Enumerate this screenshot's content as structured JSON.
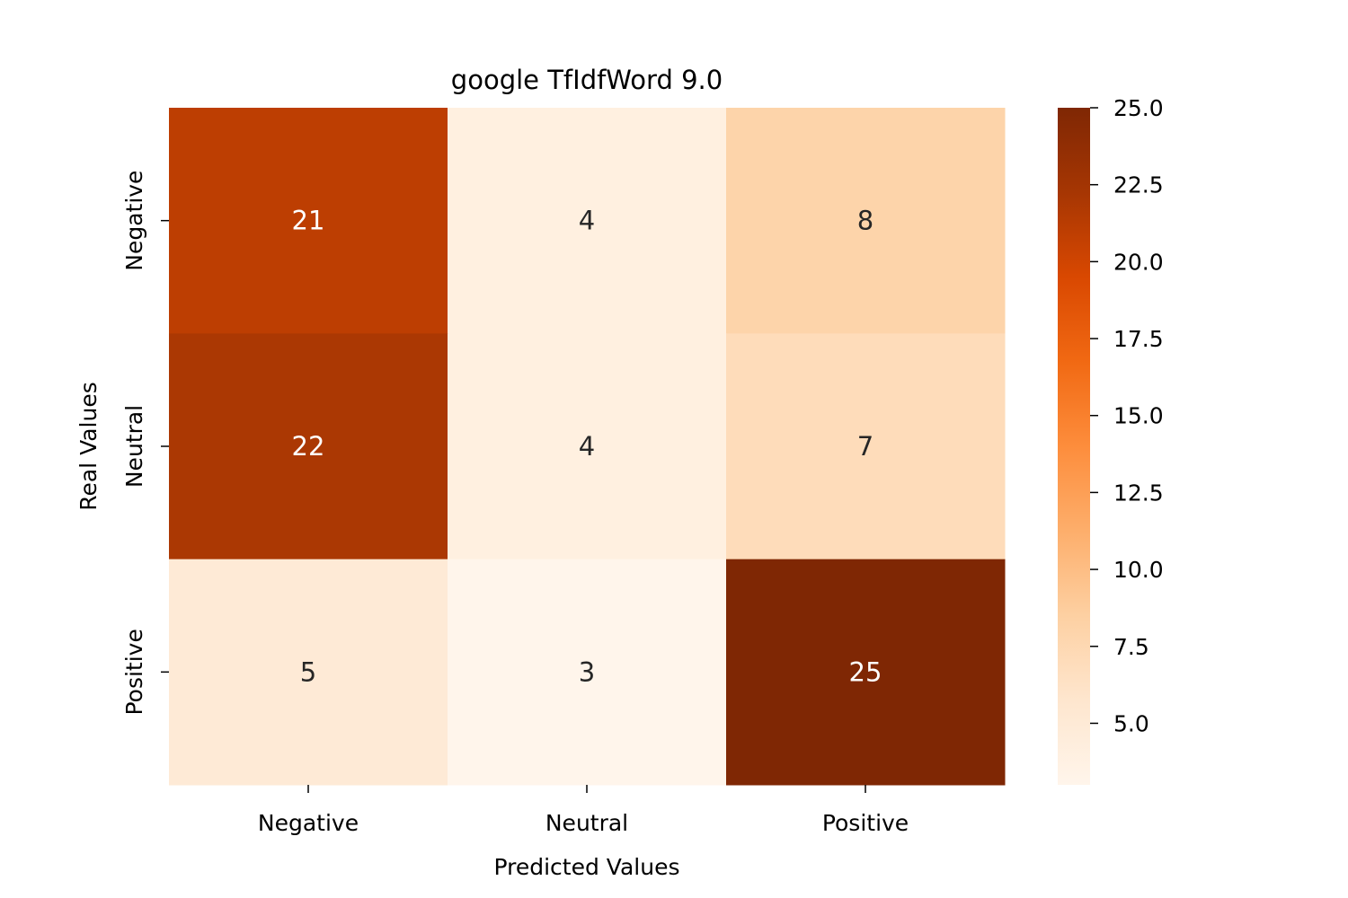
{
  "chart_data": {
    "type": "heatmap",
    "title": "google TfIdfWord 9.0",
    "xlabel": "Predicted Values",
    "ylabel": "Real Values",
    "x_categories": [
      "Negative",
      "Neutral",
      "Positive"
    ],
    "y_categories": [
      "Negative",
      "Neutral",
      "Positive"
    ],
    "values": [
      [
        21,
        4,
        8
      ],
      [
        22,
        4,
        7
      ],
      [
        5,
        3,
        25
      ]
    ],
    "colormap": "Oranges",
    "colorbar": {
      "min": 3,
      "max": 25,
      "ticks": [
        5.0,
        7.5,
        10.0,
        12.5,
        15.0,
        17.5,
        20.0,
        22.5,
        25.0
      ],
      "tick_labels": [
        "5.0",
        "7.5",
        "10.0",
        "12.5",
        "15.0",
        "17.5",
        "20.0",
        "22.5",
        "25.0"
      ]
    },
    "annotation_colors": {
      "light": "#ffffff",
      "dark": "#262626"
    }
  }
}
